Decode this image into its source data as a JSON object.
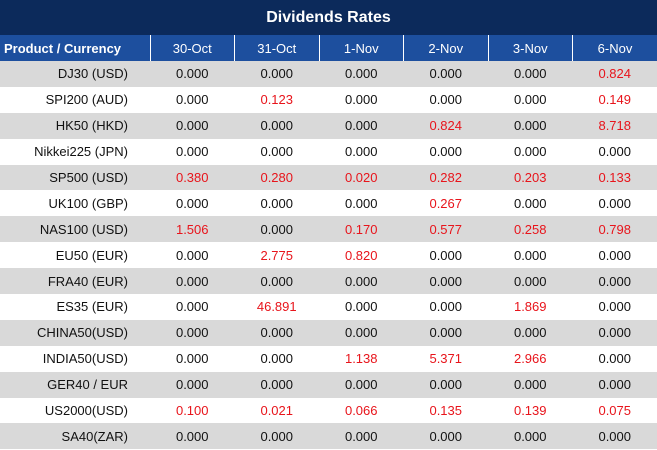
{
  "title": "Dividends Rates",
  "table": {
    "header": [
      "Product / Currency",
      "30-Oct",
      "31-Oct",
      "1-Nov",
      "2-Nov",
      "3-Nov",
      "6-Nov"
    ],
    "rows": [
      [
        "DJ30 (USD)",
        "0.000",
        "0.000",
        "0.000",
        "0.000",
        "0.000",
        "0.824"
      ],
      [
        "SPI200 (AUD)",
        "0.000",
        "0.123",
        "0.000",
        "0.000",
        "0.000",
        "0.149"
      ],
      [
        "HK50 (HKD)",
        "0.000",
        "0.000",
        "0.000",
        "0.824",
        "0.000",
        "8.718"
      ],
      [
        "Nikkei225 (JPN)",
        "0.000",
        "0.000",
        "0.000",
        "0.000",
        "0.000",
        "0.000"
      ],
      [
        "SP500 (USD)",
        "0.380",
        "0.280",
        "0.020",
        "0.282",
        "0.203",
        "0.133"
      ],
      [
        "UK100 (GBP)",
        "0.000",
        "0.000",
        "0.000",
        "0.267",
        "0.000",
        "0.000"
      ],
      [
        "NAS100 (USD)",
        "1.506",
        "0.000",
        "0.170",
        "0.577",
        "0.258",
        "0.798"
      ],
      [
        "EU50 (EUR)",
        "0.000",
        "2.775",
        "0.820",
        "0.000",
        "0.000",
        "0.000"
      ],
      [
        "FRA40 (EUR)",
        "0.000",
        "0.000",
        "0.000",
        "0.000",
        "0.000",
        "0.000"
      ],
      [
        "ES35 (EUR)",
        "0.000",
        "46.891",
        "0.000",
        "0.000",
        "1.869",
        "0.000"
      ],
      [
        "CHINA50(USD)",
        "0.000",
        "0.000",
        "0.000",
        "0.000",
        "0.000",
        "0.000"
      ],
      [
        "INDIA50(USD)",
        "0.000",
        "0.000",
        "1.138",
        "5.371",
        "2.966",
        "0.000"
      ],
      [
        "GER40 / EUR",
        "0.000",
        "0.000",
        "0.000",
        "0.000",
        "0.000",
        "0.000"
      ],
      [
        "US2000(USD)",
        "0.100",
        "0.021",
        "0.066",
        "0.135",
        "0.139",
        "0.075"
      ],
      [
        "SA40(ZAR)",
        "0.000",
        "0.000",
        "0.000",
        "0.000",
        "0.000",
        "0.000"
      ]
    ]
  }
}
